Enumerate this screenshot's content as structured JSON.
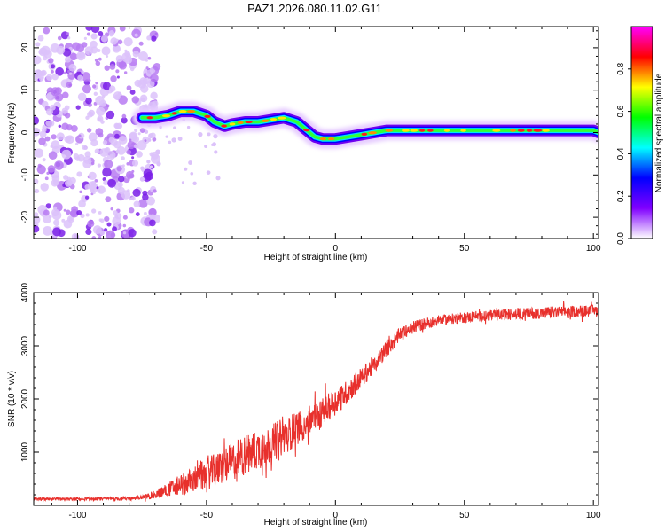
{
  "page_title": "PAZ1.2026.080.11.02.G11",
  "chart_data": [
    {
      "type": "heatmap",
      "title": "PAZ1.2026.080.11.02.G11",
      "xlabel": "Height of straight line (km)",
      "ylabel": "Frequency (Hz)",
      "xlim": [
        -117,
        102
      ],
      "ylim": [
        -25,
        25
      ],
      "x_ticks": [
        -100,
        -50,
        0,
        50,
        100
      ],
      "y_ticks": [
        -20,
        -10,
        0,
        10,
        20
      ],
      "x_tick_labels": [
        "-100",
        "-50",
        "0",
        "50",
        "100"
      ],
      "y_tick_labels": [
        "-20",
        "-10",
        "0",
        "10",
        "20"
      ],
      "ridge_x": [
        -75,
        -70,
        -65,
        -60,
        -55,
        -50,
        -47,
        -43,
        -40,
        -35,
        -30,
        -25,
        -20,
        -15,
        -12,
        -8,
        -5,
        0,
        5,
        10,
        15,
        20,
        30,
        40,
        50,
        60,
        70,
        80,
        90,
        100,
        102
      ],
      "ridge_y": [
        3.5,
        3.5,
        4,
        5,
        5,
        4,
        2.5,
        1.5,
        2,
        2.5,
        2.5,
        3,
        3.5,
        2.5,
        1,
        -1,
        -1.5,
        -1.5,
        -1,
        -0.5,
        0,
        0.5,
        0.5,
        0.5,
        0.5,
        0.5,
        0.5,
        0.5,
        0.5,
        0.5,
        0
      ],
      "noise_region_x": [
        -117,
        -75
      ],
      "colorbar": {
        "label": "Normalized spectral amplitude",
        "ticks": [
          0.0,
          0.2,
          0.4,
          0.6,
          0.8
        ],
        "tick_labels": [
          "0.0",
          "0.2",
          "0.4",
          "0.6",
          "0.8"
        ],
        "range": [
          0,
          1
        ],
        "colors": [
          "#ffffff",
          "#8000ff",
          "#0000ff",
          "#00ffff",
          "#00ff00",
          "#ffff00",
          "#ff0000",
          "#ff00ff"
        ]
      }
    },
    {
      "type": "line",
      "xlabel": "Height of straight line (km)",
      "ylabel": "SNR (10 * v/v)",
      "xlim": [
        -117,
        102
      ],
      "ylim": [
        0,
        4000
      ],
      "x_ticks": [
        -100,
        -50,
        0,
        50,
        100
      ],
      "y_ticks": [
        1000,
        2000,
        3000,
        4000
      ],
      "x_tick_labels": [
        "-100",
        "-50",
        "0",
        "50",
        "100"
      ],
      "y_tick_labels": [
        "1000",
        "2000",
        "3000",
        "4000"
      ],
      "line_color": "#e8302c",
      "series": [
        {
          "name": "SNR",
          "x": [
            -117,
            -110,
            -100,
            -90,
            -80,
            -75,
            -70,
            -65,
            -60,
            -55,
            -50,
            -45,
            -40,
            -35,
            -30,
            -25,
            -20,
            -15,
            -10,
            -5,
            0,
            5,
            10,
            15,
            20,
            25,
            30,
            35,
            40,
            50,
            60,
            70,
            80,
            90,
            100,
            102
          ],
          "y": [
            120,
            110,
            120,
            120,
            130,
            150,
            200,
            300,
            380,
            480,
            580,
            700,
            820,
            950,
            1050,
            1150,
            1300,
            1450,
            1600,
            1750,
            1950,
            2150,
            2400,
            2650,
            2950,
            3200,
            3350,
            3420,
            3480,
            3530,
            3570,
            3600,
            3620,
            3640,
            3660,
            3660
          ],
          "noise": [
            30,
            30,
            30,
            30,
            35,
            40,
            80,
            130,
            200,
            250,
            300,
            330,
            360,
            380,
            380,
            370,
            350,
            320,
            300,
            270,
            250,
            220,
            200,
            180,
            160,
            140,
            120,
            110,
            100,
            100,
            100,
            110,
            110,
            110,
            110,
            110
          ]
        }
      ]
    }
  ]
}
